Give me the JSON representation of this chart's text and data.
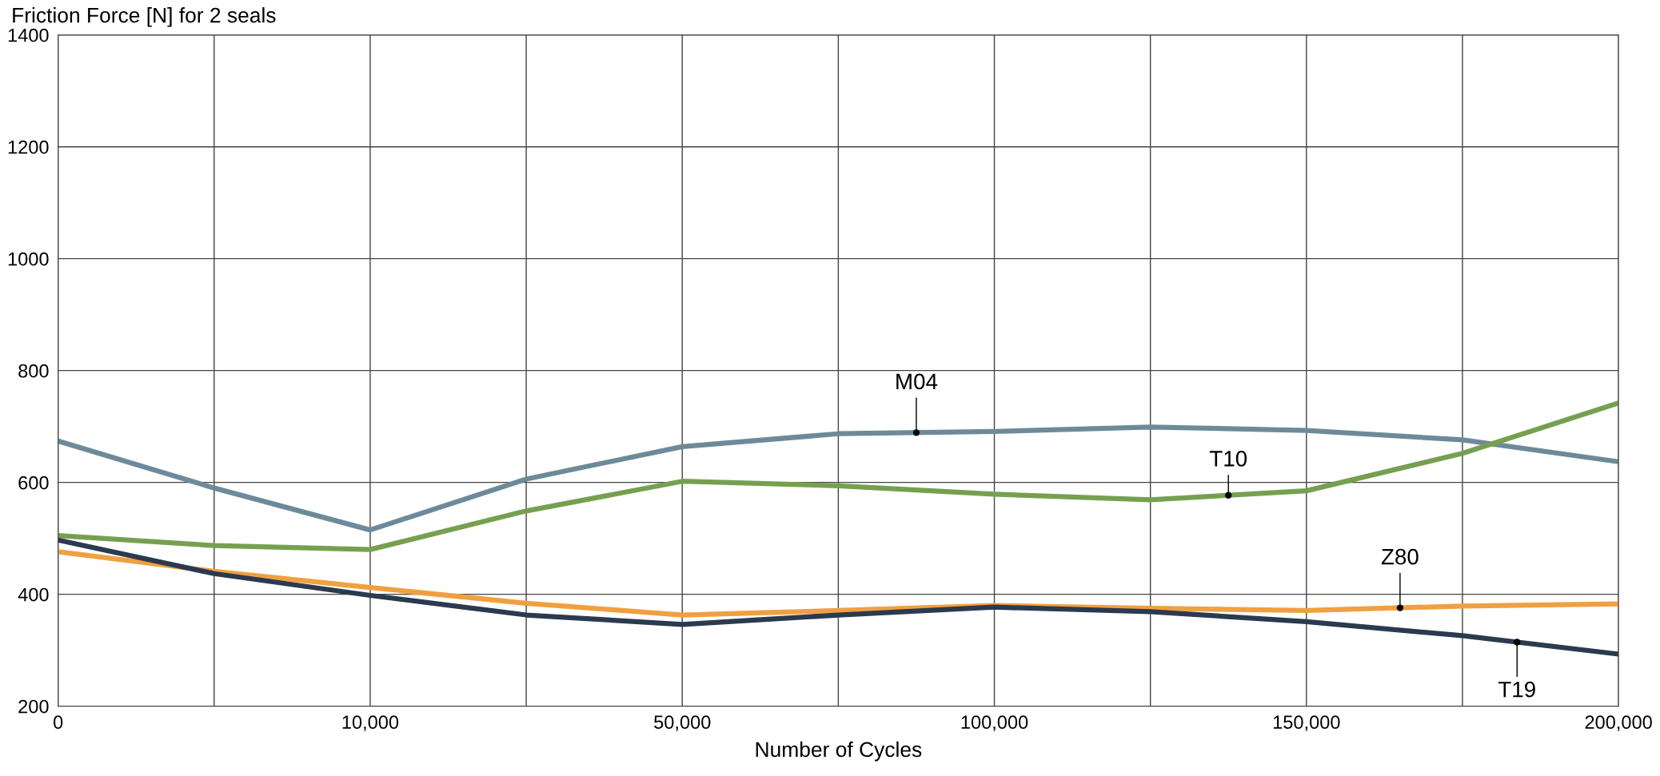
{
  "chart_data": {
    "type": "line",
    "ylabel": "Friction Force [N] for 2 seals",
    "xlabel": "Number of Cycles",
    "categories": [
      "0",
      null,
      "10,000",
      null,
      "50,000",
      null,
      "100,000",
      null,
      "150,000",
      null,
      "200,000"
    ],
    "series": [
      {
        "name": "M04",
        "color": "#6e8a9a",
        "values": [
          674,
          590,
          515,
          606,
          664,
          687,
          691,
          699,
          693,
          676,
          637
        ]
      },
      {
        "name": "T10",
        "color": "#76a050",
        "values": [
          505,
          487,
          480,
          549,
          602,
          594,
          579,
          569,
          585,
          652,
          742
        ]
      },
      {
        "name": "Z80",
        "color": "#f0a040",
        "values": [
          476,
          441,
          412,
          384,
          363,
          371,
          380,
          375,
          371,
          379,
          383
        ]
      },
      {
        "name": "T19",
        "color": "#2b3a4f",
        "values": [
          497,
          437,
          398,
          363,
          346,
          363,
          377,
          369,
          351,
          326,
          293
        ]
      }
    ],
    "ylim": [
      200,
      1400
    ],
    "yticks": [
      200,
      400,
      600,
      800,
      1000,
      1200,
      1400
    ],
    "grid": true,
    "legend": false,
    "marker": "none",
    "line_style": "solid"
  }
}
